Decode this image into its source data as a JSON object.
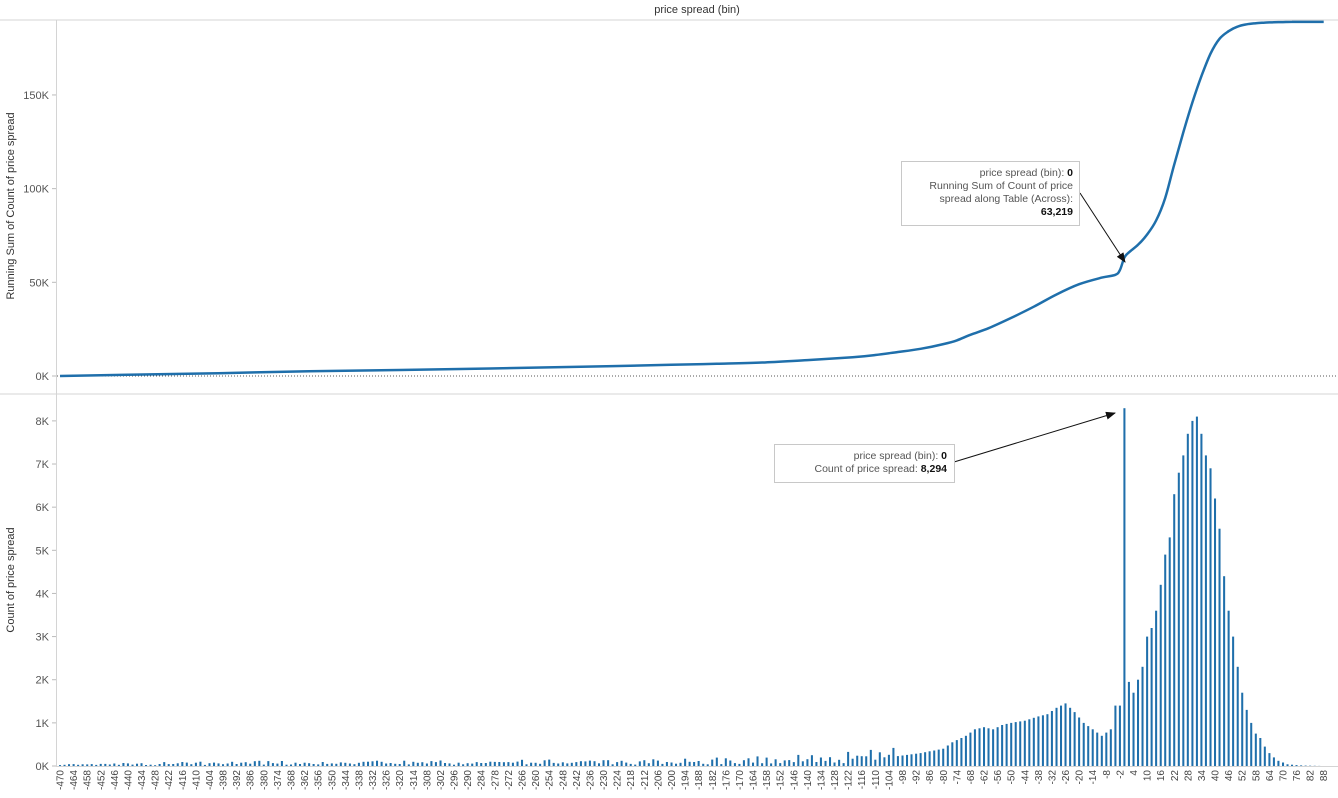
{
  "chart_data": [
    {
      "type": "line",
      "title": "price spread (bin)",
      "xlabel": "",
      "ylabel": "Running Sum of Count of price spread",
      "yticks": [
        "0K",
        "50K",
        "100K",
        "150K"
      ],
      "ylim": [
        0,
        190000
      ],
      "x": [
        -470,
        -440,
        -400,
        -360,
        -320,
        -280,
        -240,
        -200,
        -180,
        -160,
        -140,
        -120,
        -110,
        -100,
        -90,
        -80,
        -74,
        -68,
        -60,
        -50,
        -40,
        -30,
        -20,
        -10,
        -4,
        -2,
        0,
        2,
        6,
        10,
        14,
        18,
        22,
        26,
        30,
        34,
        38,
        42,
        46,
        50,
        54,
        58,
        62,
        66,
        70,
        74,
        78,
        82,
        88
      ],
      "values": [
        0,
        700,
        1500,
        2500,
        3200,
        4000,
        4900,
        6000,
        6500,
        7200,
        8500,
        10000,
        11200,
        12800,
        14500,
        17000,
        19000,
        22000,
        25500,
        31000,
        37000,
        43500,
        49000,
        52500,
        54000,
        56500,
        63219,
        66000,
        70000,
        75500,
        83000,
        95000,
        113000,
        130000,
        146000,
        160000,
        172000,
        180000,
        184000,
        186500,
        187700,
        188300,
        188600,
        188800,
        188900,
        189000,
        189000,
        189000,
        189000
      ],
      "grid": false
    },
    {
      "type": "bar",
      "xlabel": "",
      "ylabel": "Count of price spread",
      "yticks": [
        "0K",
        "1K",
        "2K",
        "3K",
        "4K",
        "5K",
        "6K",
        "7K",
        "8K"
      ],
      "ylim": [
        0,
        8600
      ],
      "x_tick_labels": [
        "-470",
        "-464",
        "-458",
        "-452",
        "-446",
        "-440",
        "-434",
        "-428",
        "-422",
        "-416",
        "-410",
        "-404",
        "-398",
        "-392",
        "-386",
        "-380",
        "-374",
        "-368",
        "-362",
        "-356",
        "-350",
        "-344",
        "-338",
        "-332",
        "-326",
        "-320",
        "-314",
        "-308",
        "-302",
        "-296",
        "-290",
        "-284",
        "-278",
        "-272",
        "-266",
        "-260",
        "-254",
        "-248",
        "-242",
        "-236",
        "-230",
        "-224",
        "-218",
        "-212",
        "-206",
        "-200",
        "-194",
        "-188",
        "-182",
        "-176",
        "-170",
        "-164",
        "-158",
        "-152",
        "-146",
        "-140",
        "-134",
        "-128",
        "-122",
        "-116",
        "-110",
        "-104",
        "-98",
        "-92",
        "-86",
        "-80",
        "-74",
        "-68",
        "-62",
        "-56",
        "-50",
        "-44",
        "-38",
        "-32",
        "-26",
        "-20",
        "-14",
        "-8",
        "-2",
        "4",
        "10",
        "16",
        "22",
        "28",
        "34",
        "40",
        "46",
        "52",
        "58",
        "64",
        "70",
        "76",
        "82",
        "88"
      ],
      "x_range": [
        -470,
        89
      ],
      "x": [
        -470,
        -400,
        -300,
        -200,
        -150,
        -120,
        -100,
        -90,
        -80,
        -76,
        -70,
        -66,
        -62,
        -58,
        -54,
        -50,
        -44,
        -38,
        -34,
        -30,
        -26,
        -22,
        -18,
        -14,
        -10,
        -6,
        -4,
        -2,
        0,
        2,
        4,
        6,
        8,
        10,
        12,
        14,
        16,
        18,
        20,
        22,
        24,
        26,
        28,
        30,
        32,
        34,
        36,
        38,
        40,
        42,
        44,
        46,
        48,
        50,
        52,
        54,
        56,
        58,
        60,
        62,
        64,
        66,
        68,
        70,
        72,
        76,
        80,
        84,
        88
      ],
      "values": [
        20,
        60,
        70,
        80,
        130,
        170,
        230,
        300,
        400,
        550,
        700,
        850,
        900,
        850,
        950,
        1000,
        1050,
        1150,
        1200,
        1350,
        1450,
        1250,
        1000,
        850,
        700,
        850,
        1400,
        1200,
        8294,
        1950,
        1700,
        2000,
        2300,
        3000,
        3200,
        3600,
        4200,
        4900,
        5300,
        6300,
        6800,
        7200,
        7700,
        8000,
        8100,
        7700,
        7200,
        6900,
        6200,
        5500,
        4400,
        3600,
        3000,
        2300,
        1700,
        1300,
        1000,
        750,
        650,
        450,
        300,
        200,
        120,
        80,
        40,
        20,
        10,
        5,
        0
      ],
      "grid": false
    }
  ],
  "annotations": {
    "top": {
      "line1_label": "price spread (bin):",
      "line1_value": "0",
      "line2": "Running Sum of Count of price",
      "line3": "spread along Table (Across):",
      "line4_value": "63,219"
    },
    "bottom": {
      "line1_label": "price spread (bin):",
      "line1_value": "0",
      "line2_label": "Count of price spread:",
      "line2_value": "8,294"
    }
  }
}
